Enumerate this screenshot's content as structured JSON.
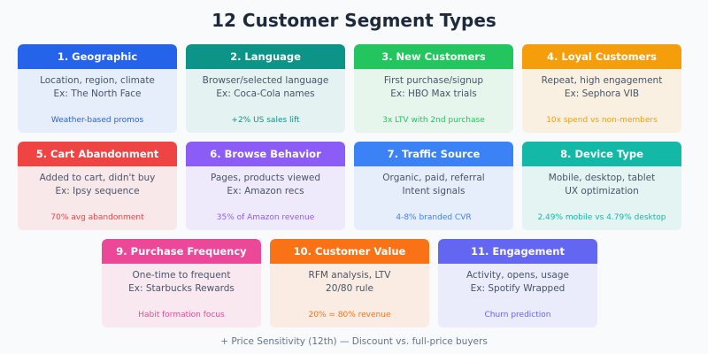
{
  "title": "12 Customer Segment Types",
  "segments": [
    {
      "title": "1. Geographic",
      "line1": "Location, region, climate",
      "line2": "Ex: The North Face",
      "stat": "Weather-based promos",
      "color": "#2563eb",
      "bg": "#e6edfb"
    },
    {
      "title": "2. Language",
      "line1": "Browser/selected language",
      "line2": "Ex: Coca-Cola names",
      "stat": "+2% US sales lift",
      "color": "#0d9488",
      "bg": "#e4f2f1"
    },
    {
      "title": "3. New Customers",
      "line1": "First purchase/signup",
      "line2": "Ex: HBO Max trials",
      "stat": "3x LTV with 2nd purchase",
      "color": "#22c55e",
      "bg": "#e6f6ec"
    },
    {
      "title": "4. Loyal Customers",
      "line1": "Repeat, high engagement",
      "line2": "Ex: Sephora VIB",
      "stat": "10x spend vs non-members",
      "color": "#f59e0b",
      "bg": "#faf0e1"
    },
    {
      "title": "5. Cart Abandonment",
      "line1": "Added to cart, didn't buy",
      "line2": "Ex: Ipsy sequence",
      "stat": "70% avg abandonment",
      "color": "#ef4444",
      "bg": "#f9e8e9"
    },
    {
      "title": "6. Browse Behavior",
      "line1": "Pages, products viewed",
      "line2": "Ex: Amazon recs",
      "stat": "35% of Amazon revenue",
      "color": "#8b5cf6",
      "bg": "#efeafb"
    },
    {
      "title": "7. Traffic Source",
      "line1": "Organic, paid, referral",
      "line2": "Intent signals",
      "stat": "4-8% branded CVR",
      "color": "#3b82f6",
      "bg": "#e7eefb"
    },
    {
      "title": "8. Device Type",
      "line1": "Mobile, desktop, tablet",
      "line2": "UX optimization",
      "stat": "2.49% mobile vs 4.79% desktop",
      "color": "#14b8a6",
      "bg": "#e4f4f2"
    },
    {
      "title": "9. Purchase Frequency",
      "line1": "One-time to frequent",
      "line2": "Ex: Starbucks Rewards",
      "stat": "Habit formation focus",
      "color": "#ec4899",
      "bg": "#f9e8f0"
    },
    {
      "title": "10. Customer Value",
      "line1": "RFM analysis, LTV",
      "line2": "20/80 rule",
      "stat": "20% = 80% revenue",
      "color": "#f97316",
      "bg": "#faece2"
    },
    {
      "title": "11. Engagement",
      "line1": "Activity, opens, usage",
      "line2": "Ex: Spotify Wrapped",
      "stat": "Churn prediction",
      "color": "#6366f1",
      "bg": "#eaebfb"
    }
  ],
  "footnote": "+ Price Sensitivity (12th) — Discount vs. full-price buyers"
}
